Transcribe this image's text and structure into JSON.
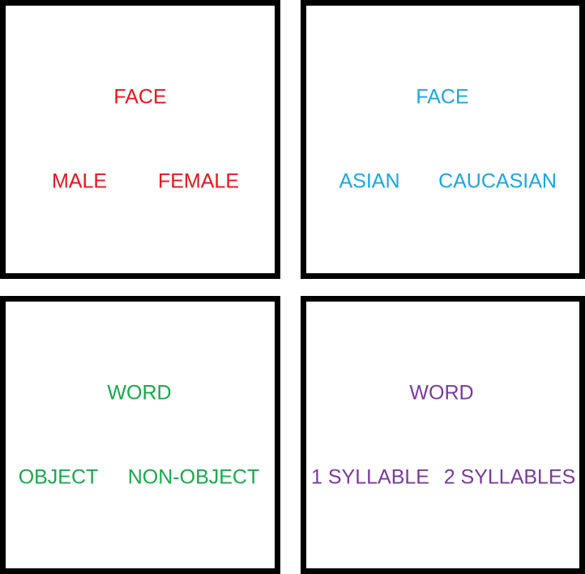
{
  "colors": {
    "red": "#e8141c",
    "blue": "#1aa6e6",
    "green": "#19a84c",
    "purple": "#7a3aa0",
    "border": "#000000"
  },
  "panels": [
    {
      "title": "FACE",
      "left_option": "MALE",
      "right_option": "FEMALE"
    },
    {
      "title": "FACE",
      "left_option": "ASIAN",
      "right_option": "CAUCASIAN"
    },
    {
      "title": "WORD",
      "left_option": "OBJECT",
      "right_option": "NON-OBJECT"
    },
    {
      "title": "WORD",
      "left_option": "1 SYLLABLE",
      "right_option": "2 SYLLABLES"
    }
  ]
}
